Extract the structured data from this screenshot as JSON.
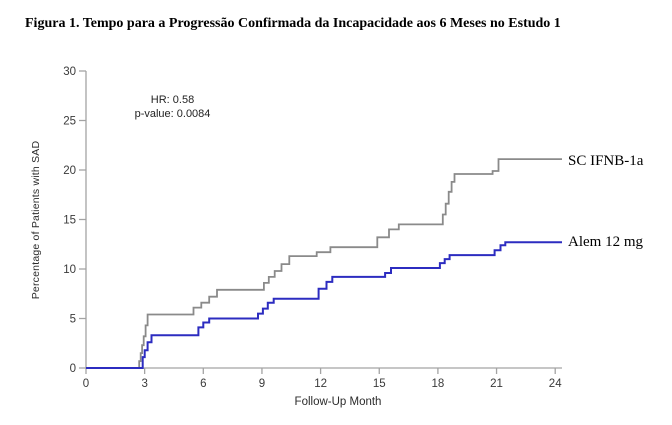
{
  "title": "Figura 1. Tempo para a Progressão Confirmada da Incapacidade aos 6 Meses no Estudo 1",
  "annotation": {
    "hr": "HR: 0.58",
    "p_value": "p-value: 0.0084"
  },
  "colors": {
    "ifnb_line": "#8a8a8a",
    "alem_line": "#2c2cc0",
    "axis": "#a3a3a3",
    "tick_text": "#3a3a3a"
  },
  "chart_data": {
    "type": "line",
    "subtype": "step-survival",
    "title": "Figura 1. Tempo para a Progressão Confirmada da Incapacidade aos 6 Meses no Estudo 1",
    "xlabel": "Follow-Up Month",
    "ylabel": "Percentage of Patients with SAD",
    "xlim": [
      0,
      24.5
    ],
    "ylim": [
      0,
      30
    ],
    "xticks": [
      0,
      3,
      6,
      9,
      12,
      15,
      18,
      21,
      24
    ],
    "yticks": [
      0,
      5,
      10,
      15,
      20,
      25,
      30
    ],
    "grid": false,
    "legend_position": "right-of-curve-ends",
    "annotations": [
      "HR: 0.58",
      "p-value: 0.0084"
    ],
    "series": [
      {
        "name": "SC IFNB-1a",
        "color": "#8a8a8a",
        "final_value": 21.1,
        "points": [
          [
            0,
            0
          ],
          [
            2.65,
            0
          ],
          [
            2.72,
            0.7
          ],
          [
            2.8,
            1.5
          ],
          [
            2.87,
            2.3
          ],
          [
            2.95,
            3.2
          ],
          [
            3.05,
            4.3
          ],
          [
            3.15,
            5.4
          ],
          [
            5.5,
            6.1
          ],
          [
            5.9,
            6.6
          ],
          [
            6.3,
            7.2
          ],
          [
            6.7,
            7.9
          ],
          [
            9.1,
            8.6
          ],
          [
            9.35,
            9.2
          ],
          [
            9.65,
            9.8
          ],
          [
            10.0,
            10.5
          ],
          [
            10.4,
            11.3
          ],
          [
            11.8,
            11.7
          ],
          [
            12.5,
            12.2
          ],
          [
            14.9,
            13.2
          ],
          [
            15.5,
            14.0
          ],
          [
            16.0,
            14.5
          ],
          [
            18.25,
            15.5
          ],
          [
            18.4,
            16.6
          ],
          [
            18.55,
            17.8
          ],
          [
            18.7,
            18.8
          ],
          [
            18.85,
            19.6
          ],
          [
            20.8,
            19.9
          ],
          [
            21.1,
            21.1
          ],
          [
            24.35,
            21.1
          ]
        ]
      },
      {
        "name": "Alem 12 mg",
        "color": "#2c2cc0",
        "final_value": 12.7,
        "points": [
          [
            0,
            0
          ],
          [
            2.8,
            0
          ],
          [
            2.9,
            1.1
          ],
          [
            3.0,
            1.8
          ],
          [
            3.15,
            2.6
          ],
          [
            3.35,
            3.3
          ],
          [
            5.75,
            4.1
          ],
          [
            6.0,
            4.6
          ],
          [
            6.3,
            5.0
          ],
          [
            8.8,
            5.5
          ],
          [
            9.05,
            6.0
          ],
          [
            9.3,
            6.6
          ],
          [
            9.6,
            7.0
          ],
          [
            11.9,
            8.0
          ],
          [
            12.3,
            8.7
          ],
          [
            12.6,
            9.2
          ],
          [
            15.3,
            9.6
          ],
          [
            15.6,
            10.1
          ],
          [
            18.1,
            10.6
          ],
          [
            18.35,
            11.0
          ],
          [
            18.6,
            11.4
          ],
          [
            20.9,
            11.9
          ],
          [
            21.2,
            12.4
          ],
          [
            21.45,
            12.7
          ],
          [
            24.35,
            12.7
          ]
        ]
      }
    ]
  }
}
